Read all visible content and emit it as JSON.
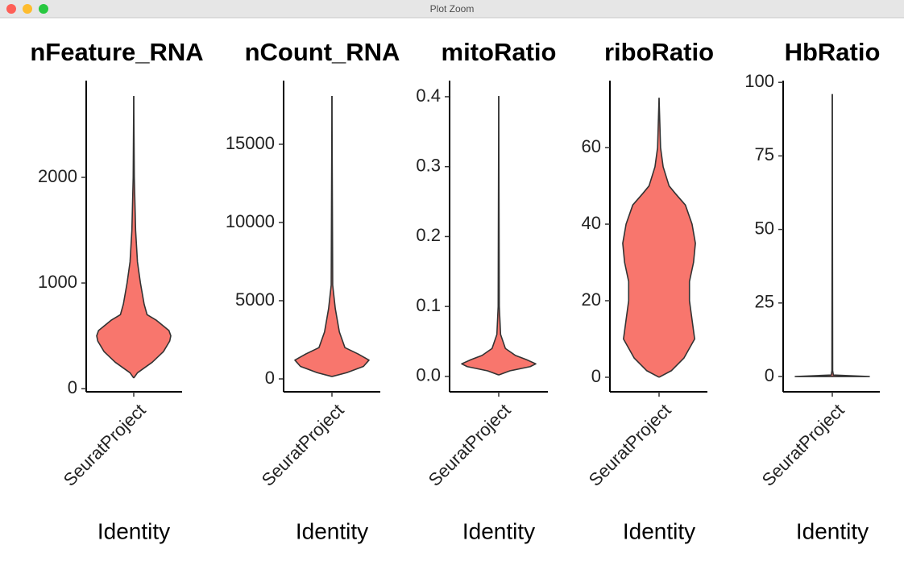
{
  "window": {
    "title": "Plot Zoom"
  },
  "chart_data": [
    {
      "type": "violin",
      "title": "nFeature_RNA",
      "categories": [
        "SeuratProject"
      ],
      "xlabel": "Identity",
      "color": "#f8766d",
      "y": [
        100,
        150,
        250,
        350,
        450,
        500,
        550,
        650,
        700,
        800,
        1000,
        1200,
        1500,
        2000,
        2770
      ],
      "density": [
        0,
        0.1,
        0.5,
        0.8,
        0.97,
        1,
        0.95,
        0.6,
        0.36,
        0.28,
        0.18,
        0.1,
        0.05,
        0.015,
        0
      ],
      "ylim": [
        -30,
        2916
      ],
      "yticks": [
        0,
        1000,
        2000
      ]
    },
    {
      "type": "violin",
      "title": "nCount_RNA",
      "categories": [
        "SeuratProject"
      ],
      "xlabel": "Identity",
      "color": "#f8766d",
      "y": [
        150,
        400,
        800,
        1200,
        1600,
        2000,
        3000,
        4500,
        6000,
        18090
      ],
      "density": [
        0,
        0.4,
        0.85,
        1,
        0.7,
        0.35,
        0.2,
        0.09,
        0.02,
        0
      ],
      "ylim": [
        -825,
        19070
      ],
      "yticks": [
        0,
        5000,
        10000,
        15000
      ]
    },
    {
      "type": "violin",
      "title": "mitoRatio",
      "categories": [
        "SeuratProject"
      ],
      "xlabel": "Identity",
      "color": "#f8766d",
      "y": [
        0.002,
        0.008,
        0.014,
        0.018,
        0.024,
        0.03,
        0.04,
        0.06,
        0.1,
        0.401
      ],
      "density": [
        0,
        0.3,
        0.85,
        1,
        0.75,
        0.45,
        0.18,
        0.05,
        0.015,
        0
      ],
      "ylim": [
        -0.022,
        0.423
      ],
      "yticks": [
        {
          "value": 0,
          "label": "0.0"
        },
        0.1,
        0.2,
        0.3,
        0.4
      ]
    },
    {
      "type": "violin",
      "title": "riboRatio",
      "categories": [
        "SeuratProject"
      ],
      "xlabel": "Identity",
      "color": "#f8766d",
      "y": [
        0,
        1.7,
        5,
        10,
        15,
        20,
        25,
        30,
        35,
        40,
        45,
        48,
        50,
        55,
        60,
        73
      ],
      "density": [
        0,
        0.33,
        0.67,
        0.96,
        0.89,
        0.82,
        0.82,
        0.93,
        0.98,
        0.89,
        0.71,
        0.44,
        0.27,
        0.11,
        0.04,
        0
      ],
      "ylim": [
        -3.8,
        77.5
      ],
      "yticks": [
        0,
        20,
        40,
        60
      ]
    },
    {
      "type": "violin",
      "title": "HbRatio",
      "categories": [
        "SeuratProject"
      ],
      "xlabel": "Identity",
      "color": "#f8766d",
      "y": [
        0,
        0,
        0.5,
        2,
        96
      ],
      "density": [
        0,
        1,
        0.03,
        0.01,
        0
      ],
      "ylim": [
        -5.2,
        100.6
      ],
      "yticks": [
        0,
        25,
        50,
        75,
        100
      ]
    }
  ]
}
